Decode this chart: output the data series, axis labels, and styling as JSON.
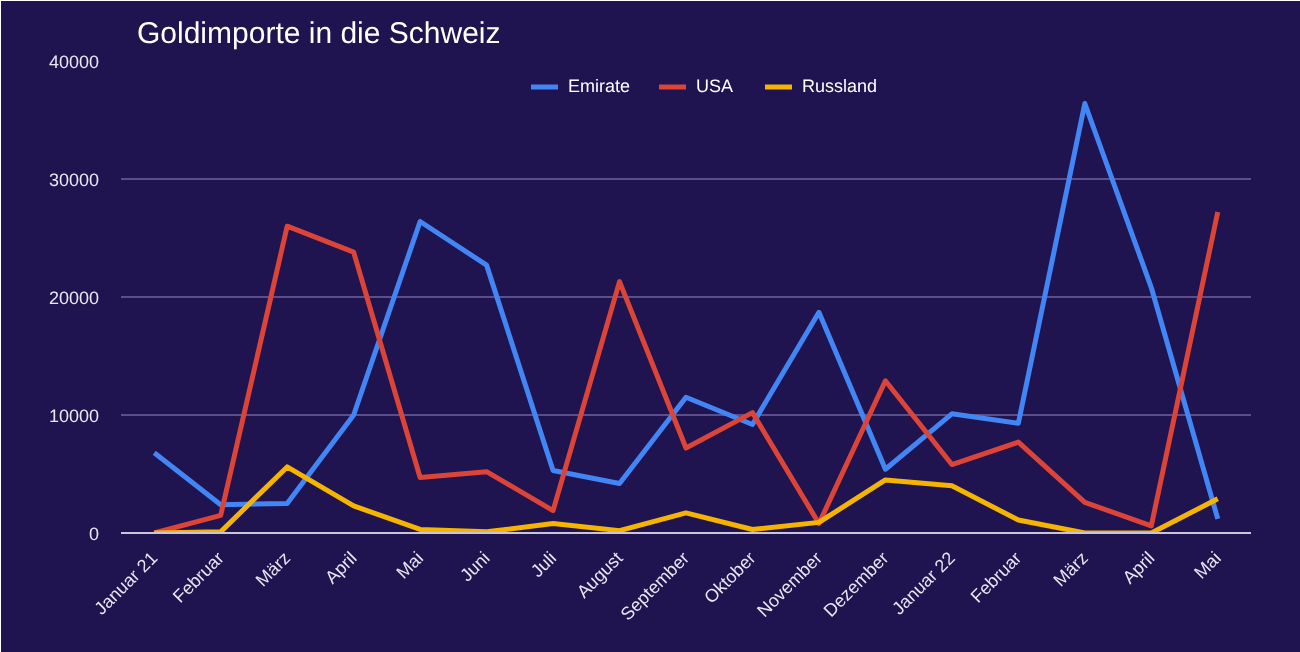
{
  "chart_data": {
    "type": "line",
    "title": "Goldimporte in die Schweiz",
    "categories": [
      "Januar 21",
      "Februar",
      "März",
      "April",
      "Mai",
      "Juni",
      "Juli",
      "August",
      "September",
      "Oktober",
      "November",
      "Dezember",
      "Januar 22",
      "Februar",
      "März",
      "April",
      "Mai"
    ],
    "series": [
      {
        "name": "Emirate",
        "color": "#4285f4",
        "values": [
          6800,
          2400,
          2500,
          10000,
          26400,
          22700,
          5300,
          4200,
          11500,
          9200,
          18700,
          5400,
          10100,
          9300,
          36400,
          20800,
          1200
        ]
      },
      {
        "name": "USA",
        "color": "#db4437",
        "values": [
          0,
          1500,
          26000,
          23800,
          4700,
          5200,
          1900,
          21300,
          7200,
          10200,
          800,
          12900,
          5800,
          7700,
          2600,
          600,
          27200
        ]
      },
      {
        "name": "Russland",
        "color": "#f4b400",
        "values": [
          0,
          100,
          5600,
          2300,
          300,
          100,
          800,
          200,
          1700,
          300,
          900,
          4500,
          4000,
          1100,
          0,
          0,
          2900
        ]
      }
    ],
    "ylim": [
      0,
      40000
    ],
    "yticks": [
      0,
      10000,
      20000,
      30000,
      40000
    ],
    "grid": "y",
    "legend": "top",
    "line_style": "solid",
    "marker": "none"
  }
}
